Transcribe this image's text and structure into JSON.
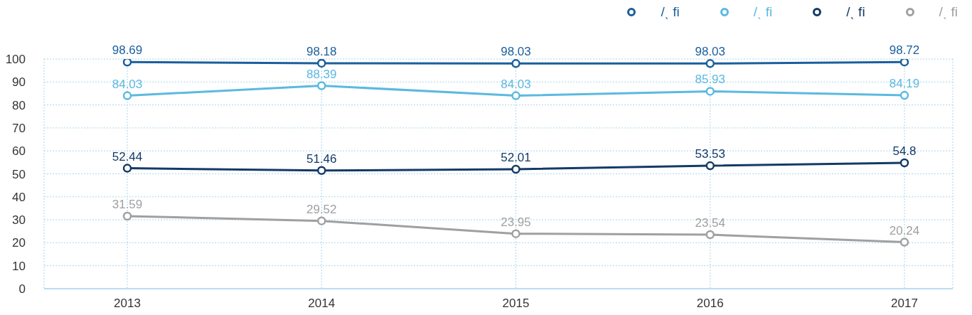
{
  "chart_data": {
    "type": "line",
    "categories": [
      "2013",
      "2014",
      "2015",
      "2016",
      "2017"
    ],
    "series": [
      {
        "name": "/ˎ fi",
        "color": "#1a5f9c",
        "values": [
          98.69,
          98.18,
          98.03,
          98.03,
          98.72
        ]
      },
      {
        "name": "/ˎ fi",
        "color": "#5cb9e0",
        "values": [
          84.03,
          88.39,
          84.03,
          85.93,
          84.19
        ]
      },
      {
        "name": "/ˎ fi",
        "color": "#143a66",
        "values": [
          52.44,
          51.46,
          52.01,
          53.53,
          54.8
        ]
      },
      {
        "name": "/ˎ fi",
        "color": "#a0a0a0",
        "values": [
          31.59,
          29.52,
          23.95,
          23.54,
          20.24
        ]
      }
    ],
    "ylim": [
      0,
      100
    ],
    "yticks": [
      0,
      10,
      20,
      30,
      40,
      50,
      60,
      70,
      80,
      90,
      100
    ],
    "grid": true,
    "legend": "top right",
    "marker": "circle",
    "line_style": "solid",
    "data_labels": true
  }
}
